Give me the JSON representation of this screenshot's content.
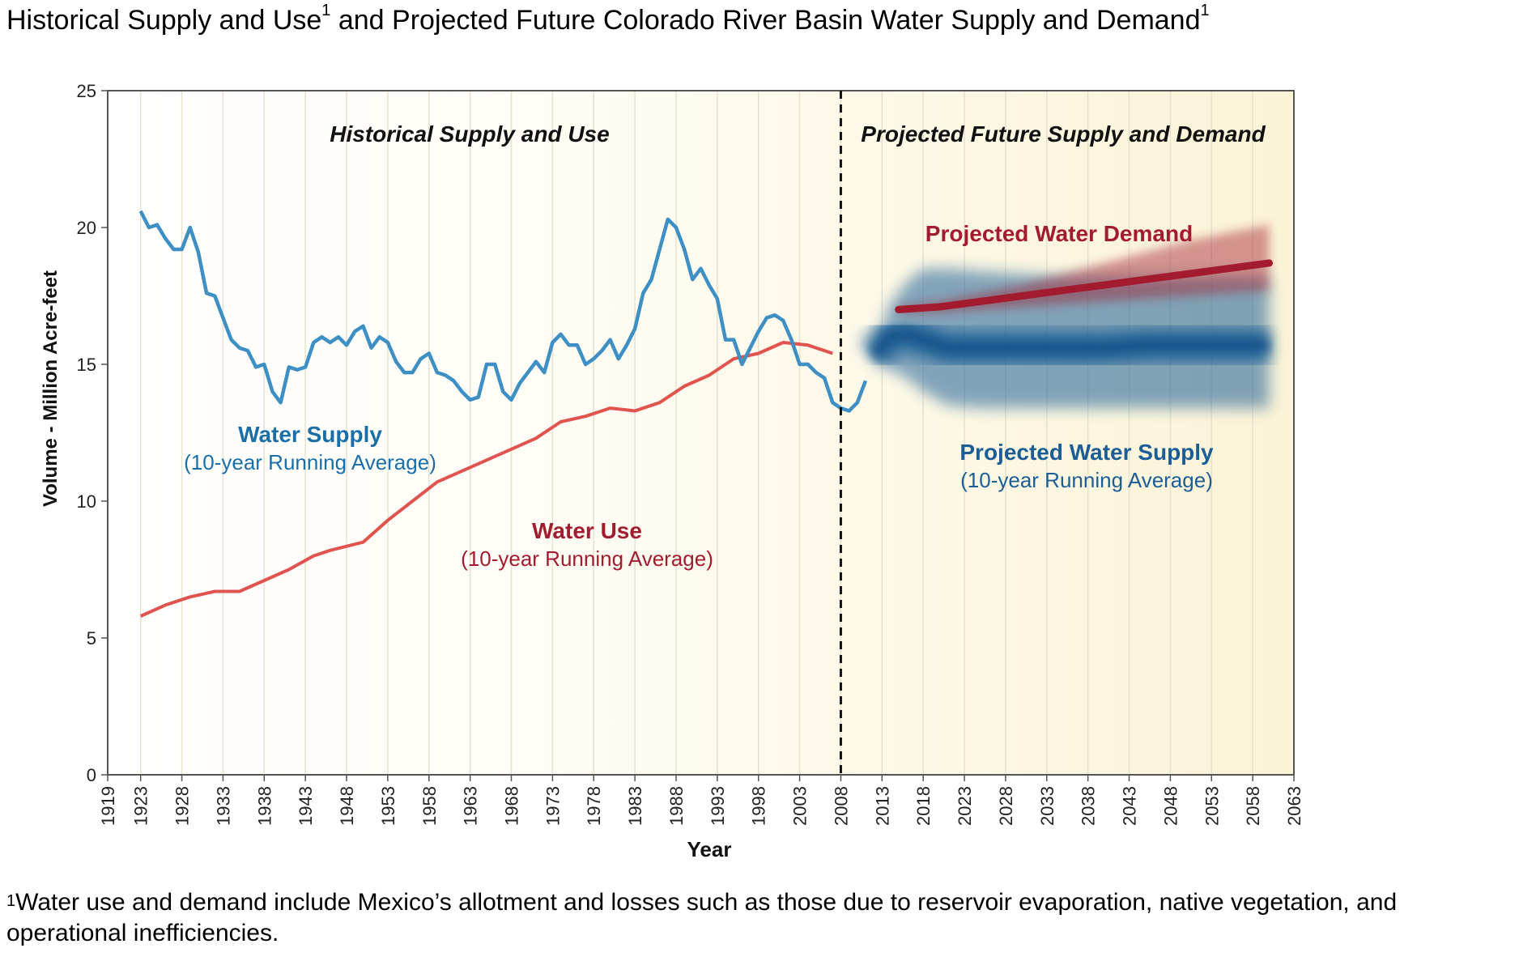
{
  "title": {
    "part1": "Historical Supply and Use",
    "sup1": "1",
    "part2": " and Projected Future Colorado River Basin Water Supply and Demand",
    "sup2": "1"
  },
  "footnote": {
    "marker": "1",
    "text": "Water use and demand include Mexico’s allotment and losses such as those due to reservoir evaporation, native vegetation, and operational inefficiencies."
  },
  "colors": {
    "supply": "#3d8fc4",
    "use": "#e0534f",
    "proj_supply": "#1b5e96",
    "proj_demand": "#a31b2e",
    "background": "#fdf9e7"
  },
  "chart_data": {
    "type": "line",
    "xlabel": "Year",
    "ylabel": "Volume - Million Acre-feet",
    "xlim": [
      1919,
      2063
    ],
    "ylim": [
      0,
      25
    ],
    "xticks": [
      "1919",
      "1923",
      "1928",
      "1933",
      "1938",
      "1943",
      "1948",
      "1953",
      "1958",
      "1963",
      "1968",
      "1973",
      "1978",
      "1983",
      "1988",
      "1993",
      "1998",
      "2003",
      "2008",
      "2013",
      "2018",
      "2023",
      "2028",
      "2033",
      "2038",
      "2043",
      "2048",
      "2053",
      "2058",
      "2063"
    ],
    "yticks": [
      "0",
      "5",
      "10",
      "15",
      "20",
      "25"
    ],
    "divider_year": 2008,
    "region_labels": {
      "historical": "Historical Supply and Use",
      "projected": "Projected Future Supply and Demand"
    },
    "series": [
      {
        "name": "Water Supply",
        "sublabel": "(10-year Running Average)",
        "x": [
          1923,
          1924,
          1925,
          1926,
          1927,
          1928,
          1929,
          1930,
          1931,
          1932,
          1933,
          1934,
          1935,
          1936,
          1937,
          1938,
          1939,
          1940,
          1941,
          1942,
          1943,
          1944,
          1945,
          1946,
          1947,
          1948,
          1949,
          1950,
          1951,
          1952,
          1953,
          1954,
          1955,
          1956,
          1957,
          1958,
          1959,
          1960,
          1961,
          1962,
          1963,
          1964,
          1965,
          1966,
          1967,
          1968,
          1969,
          1970,
          1971,
          1972,
          1973,
          1974,
          1975,
          1976,
          1977,
          1978,
          1979,
          1980,
          1981,
          1982,
          1983,
          1984,
          1985,
          1986,
          1987,
          1988,
          1989,
          1990,
          1991,
          1992,
          1993,
          1994,
          1995,
          1996,
          1997,
          1998,
          1999,
          2000,
          2001,
          2002,
          2003,
          2004,
          2005,
          2006,
          2007,
          2008,
          2009,
          2010,
          2011
        ],
        "values": [
          20.6,
          20.0,
          20.1,
          19.6,
          19.2,
          19.2,
          20.0,
          19.1,
          17.6,
          17.5,
          16.7,
          15.9,
          15.6,
          15.5,
          14.9,
          15.0,
          14.0,
          13.6,
          14.9,
          14.8,
          14.9,
          15.8,
          16.0,
          15.8,
          16.0,
          15.7,
          16.2,
          16.4,
          15.6,
          16.0,
          15.8,
          15.1,
          14.7,
          14.7,
          15.2,
          15.4,
          14.7,
          14.6,
          14.4,
          14.0,
          13.7,
          13.8,
          15.0,
          15.0,
          14.0,
          13.7,
          14.3,
          14.7,
          15.1,
          14.7,
          15.8,
          16.1,
          15.7,
          15.7,
          15.0,
          15.2,
          15.5,
          15.9,
          15.2,
          15.7,
          16.3,
          17.6,
          18.1,
          19.2,
          20.3,
          20.0,
          19.2,
          18.1,
          18.5,
          17.9,
          17.4,
          15.9,
          15.9,
          15.0,
          15.6,
          16.2,
          16.7,
          16.8,
          16.6,
          15.9,
          15.0,
          15.0,
          14.7,
          14.5,
          13.6,
          13.4,
          13.3,
          13.6,
          14.4
        ]
      },
      {
        "name": "Water Use",
        "sublabel": "(10-year Running Average)",
        "x": [
          1923,
          1926,
          1929,
          1932,
          1935,
          1938,
          1941,
          1944,
          1946,
          1950,
          1953,
          1956,
          1959,
          1962,
          1965,
          1968,
          1971,
          1974,
          1977,
          1980,
          1983,
          1986,
          1989,
          1992,
          1995,
          1998,
          2001,
          2004,
          2007
        ],
        "values": [
          5.8,
          6.2,
          6.5,
          6.7,
          6.7,
          7.1,
          7.5,
          8.0,
          8.2,
          8.5,
          9.3,
          10.0,
          10.7,
          11.1,
          11.5,
          11.9,
          12.3,
          12.9,
          13.1,
          13.4,
          13.3,
          13.6,
          14.2,
          14.6,
          15.2,
          15.4,
          15.8,
          15.7,
          15.4
        ]
      },
      {
        "name": "Projected Water Supply",
        "sublabel": "(10-year Running Average)",
        "x": [
          2012,
          2014,
          2016,
          2018,
          2021,
          2025,
          2030,
          2035,
          2040,
          2045,
          2050,
          2055,
          2060
        ],
        "values": [
          15.3,
          16.0,
          16.1,
          15.9,
          15.6,
          15.6,
          15.6,
          15.6,
          15.6,
          15.7,
          15.7,
          15.7,
          15.7
        ],
        "range_low": [
          15.0,
          14.8,
          14.5,
          14.0,
          13.5,
          13.4,
          13.4,
          13.4,
          13.4,
          13.4,
          13.4,
          13.4,
          13.4
        ],
        "range_high": [
          15.6,
          17.2,
          18.0,
          18.5,
          18.5,
          18.4,
          18.3,
          18.2,
          18.2,
          18.2,
          18.2,
          18.2,
          18.2
        ]
      },
      {
        "name": "Projected Water Demand",
        "x": [
          2015,
          2020,
          2025,
          2030,
          2035,
          2040,
          2045,
          2050,
          2055,
          2060
        ],
        "values": [
          17.0,
          17.1,
          17.3,
          17.5,
          17.7,
          17.9,
          18.1,
          18.3,
          18.5,
          18.7
        ],
        "range_low": [
          16.9,
          16.9,
          17.0,
          17.1,
          17.2,
          17.3,
          17.4,
          17.5,
          17.6,
          17.7
        ],
        "range_high": [
          17.1,
          17.3,
          17.6,
          17.9,
          18.3,
          18.7,
          19.1,
          19.5,
          19.8,
          20.1
        ]
      }
    ]
  }
}
